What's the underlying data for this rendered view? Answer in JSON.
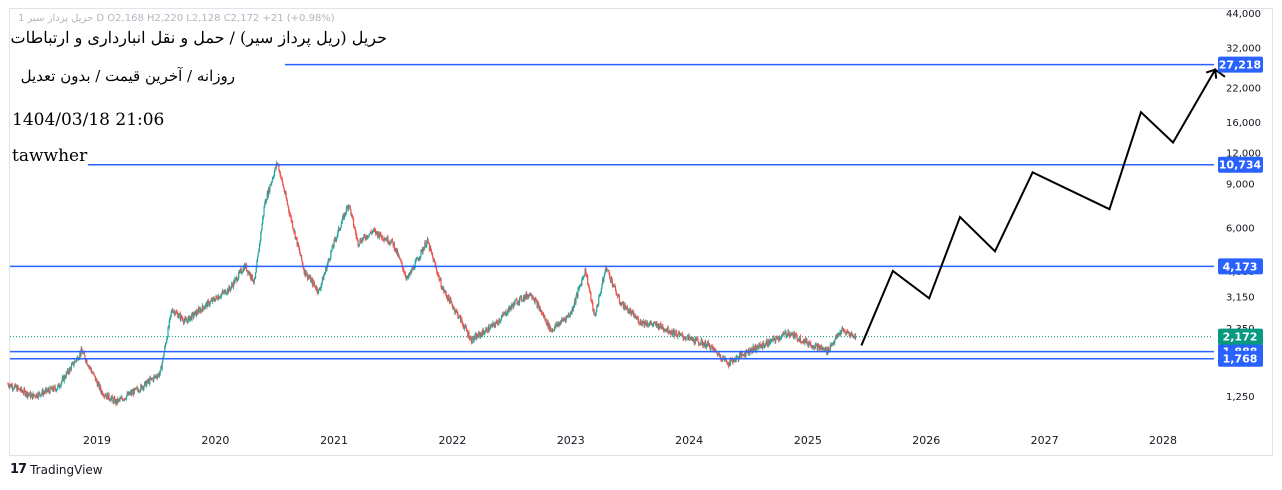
{
  "header": {
    "ohlc_line": "1 حریل پرداز سیر D  O2,168  H2,220  L2,128  C2,172  +21 (+0.98%)",
    "title": "حریل (ریل پرداز سیر) / حمل و نقل انبارداری و ارتباطات",
    "subtitle": "روزانه / آخرین قیمت / بدون تعدیل",
    "timestamp": "1404/03/18 21:06",
    "author": "tawwher"
  },
  "footer": {
    "brand": "TradingView",
    "logo_icon": "tradingview-logo-icon"
  },
  "colors": {
    "up": "#26a69a",
    "down": "#ef5350",
    "level_line": "#2962ff",
    "level_badge": "#2962ff",
    "last_price_badge": "#089981",
    "projection": "#000000"
  },
  "chart_data": {
    "type": "line",
    "subtype": "candlestick",
    "y_scale": "log",
    "ylim": [
      1000,
      44000
    ],
    "xlim": [
      "2018-04-01",
      "2028-10-01"
    ],
    "y_tick_labels": [
      "44,000",
      "32,000",
      "27,000",
      "22,000",
      "16,000",
      "12,000",
      "9,000",
      "6,000",
      "4,000",
      "3,150",
      "2,350",
      "1,250"
    ],
    "x_tick_labels": [
      "2019",
      "2020",
      "2021",
      "2022",
      "2023",
      "2024",
      "2025",
      "2026",
      "2027",
      "2028"
    ],
    "last_price": {
      "value": 2172,
      "label": "2,172"
    },
    "levels": [
      {
        "value": 27218,
        "label": "27,218"
      },
      {
        "value": 10734,
        "label": "10,734"
      },
      {
        "value": 4173,
        "label": "4,173"
      },
      {
        "value": 1888,
        "label": "1,888"
      },
      {
        "value": 1768,
        "label": "1,768"
      }
    ],
    "price_path": [
      [
        "2018-04-01",
        1400
      ],
      [
        "2018-06-15",
        1250
      ],
      [
        "2018-09-01",
        1350
      ],
      [
        "2018-11-15",
        1900
      ],
      [
        "2019-01-15",
        1300
      ],
      [
        "2019-03-01",
        1180
      ],
      [
        "2019-05-15",
        1350
      ],
      [
        "2019-07-15",
        1550
      ],
      [
        "2019-08-20",
        2800
      ],
      [
        "2019-10-01",
        2500
      ],
      [
        "2019-12-01",
        2900
      ],
      [
        "2020-02-15",
        3400
      ],
      [
        "2020-04-01",
        4200
      ],
      [
        "2020-05-01",
        3600
      ],
      [
        "2020-06-01",
        7500
      ],
      [
        "2020-07-10",
        11000
      ],
      [
        "2020-08-15",
        7000
      ],
      [
        "2020-10-01",
        4000
      ],
      [
        "2020-11-15",
        3300
      ],
      [
        "2021-01-01",
        5200
      ],
      [
        "2021-02-15",
        7500
      ],
      [
        "2021-03-15",
        5200
      ],
      [
        "2021-05-01",
        5800
      ],
      [
        "2021-07-01",
        5200
      ],
      [
        "2021-08-15",
        3700
      ],
      [
        "2021-10-15",
        5300
      ],
      [
        "2021-12-01",
        3400
      ],
      [
        "2022-01-15",
        2700
      ],
      [
        "2022-03-01",
        2100
      ],
      [
        "2022-05-15",
        2450
      ],
      [
        "2022-07-15",
        3000
      ],
      [
        "2022-09-01",
        3250
      ],
      [
        "2022-11-01",
        2300
      ],
      [
        "2023-01-01",
        2700
      ],
      [
        "2023-02-15",
        4050
      ],
      [
        "2023-03-15",
        2600
      ],
      [
        "2023-04-20",
        4150
      ],
      [
        "2023-06-01",
        3000
      ],
      [
        "2023-08-01",
        2500
      ],
      [
        "2023-10-01",
        2400
      ],
      [
        "2023-12-01",
        2200
      ],
      [
        "2024-03-01",
        2000
      ],
      [
        "2024-05-01",
        1700
      ],
      [
        "2024-07-01",
        1900
      ],
      [
        "2024-09-01",
        2050
      ],
      [
        "2024-11-01",
        2250
      ],
      [
        "2025-01-01",
        2050
      ],
      [
        "2025-03-01",
        1900
      ],
      [
        "2025-04-15",
        2300
      ],
      [
        "2025-05-28",
        2172
      ]
    ],
    "projection": [
      [
        "2025-06-15",
        2000
      ],
      [
        "2025-09-20",
        4000
      ],
      [
        "2026-01-10",
        3100
      ],
      [
        "2026-04-15",
        6600
      ],
      [
        "2026-08-01",
        4800
      ],
      [
        "2026-11-25",
        10000
      ],
      [
        "2027-07-20",
        7100
      ],
      [
        "2027-10-25",
        17500
      ],
      [
        "2028-02-01",
        13200
      ],
      [
        "2028-06-10",
        26000
      ],
      [
        "2028-07-10",
        24300
      ]
    ]
  }
}
